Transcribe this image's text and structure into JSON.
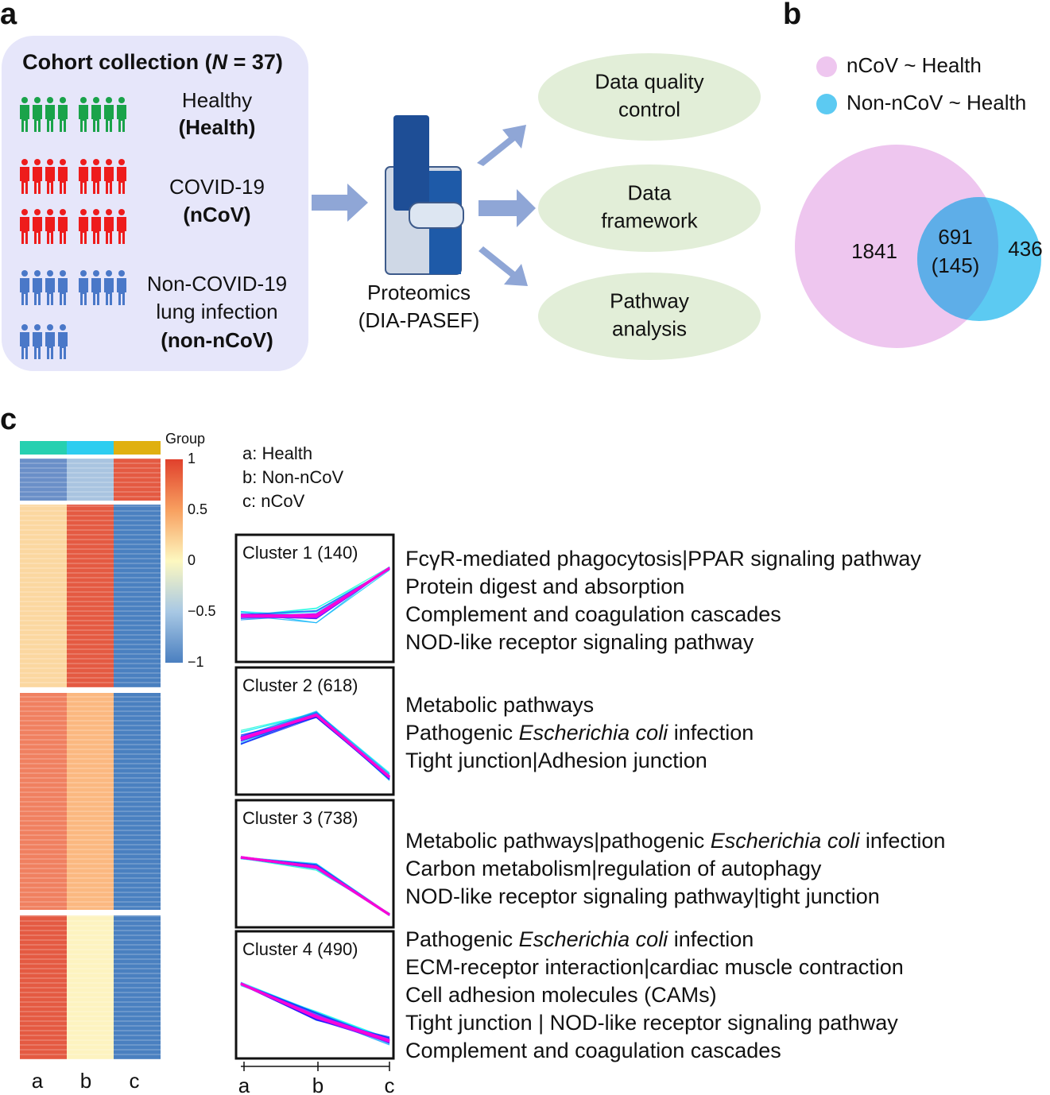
{
  "panel_a": {
    "label": "a",
    "cohort_title": [
      "Cohort collection (",
      "N",
      " = 37)"
    ],
    "groups": [
      {
        "lines": [
          "Healthy"
        ],
        "code": "(Health)"
      },
      {
        "lines": [
          "COVID-19"
        ],
        "code": "(nCoV)"
      },
      {
        "lines": [
          "Non-COVID-19",
          "lung infection"
        ],
        "code": "(non-nCoV)"
      }
    ],
    "method": [
      "Proteomics",
      "(DIA-PASEF)"
    ],
    "outputs": [
      [
        "Data quality",
        "control"
      ],
      [
        "Data",
        "framework"
      ],
      [
        "Pathway",
        "analysis"
      ]
    ]
  },
  "panel_b": {
    "label": "b",
    "legend": [
      "nCoV ~ Health",
      "Non-nCoV ~ Health"
    ],
    "left": "1841",
    "overlap": "691",
    "overlap_sub": "(145)",
    "right": "436"
  },
  "panel_c": {
    "label": "c",
    "group_label": "Group",
    "scale_ticks": [
      "1",
      "0.5",
      "0",
      "−0.5",
      "−1"
    ],
    "key": [
      "a: Health",
      "b: Non-nCoV",
      "c: nCoV"
    ],
    "heatmap_columns": [
      "a",
      "b",
      "c"
    ],
    "cluster_columns": [
      "a",
      "b",
      "c"
    ],
    "clusters": [
      {
        "title": "Cluster 1 (140)",
        "pathways": [
          "FcγR-mediated phagocytosis|PPAR signaling pathway",
          "Protein digest and absorption",
          "Complement and coagulation cascades",
          "NOD-like receptor signaling pathway"
        ]
      },
      {
        "title": "Cluster 2 (618)",
        "pathways": [
          "Metabolic pathways",
          [
            "Pathogenic ",
            "Escherichia coli",
            " infection"
          ],
          "Tight junction|Adhesion junction"
        ]
      },
      {
        "title": "Cluster 3 (738)",
        "pathways": [
          [
            "Metabolic pathways|pathogenic ",
            "Escherichia coli",
            " infection"
          ],
          "Carbon metabolism|regulation of autophagy",
          "NOD-like receptor signaling pathway|tight junction"
        ]
      },
      {
        "title": "Cluster 4 (490)",
        "pathways": [
          [
            "Pathogenic ",
            "Escherichia coli",
            " infection"
          ],
          "ECM-receptor interaction|cardiac muscle contraction",
          "Cell adhesion molecules (CAMs)",
          "Tight junction | NOD-like receptor signaling pathway",
          "Complement and coagulation cascades"
        ]
      }
    ]
  }
}
